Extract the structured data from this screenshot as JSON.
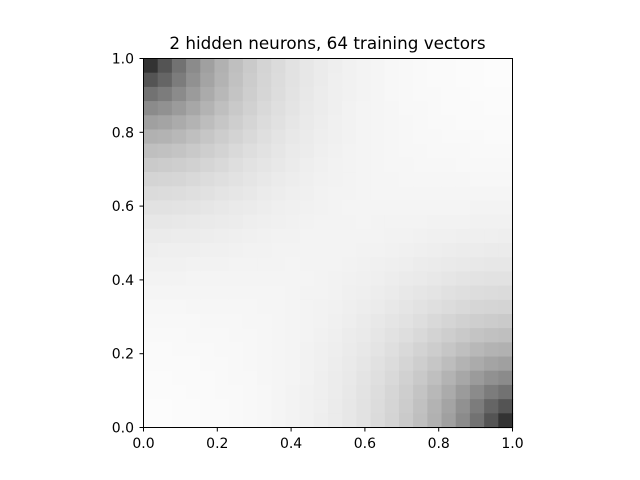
{
  "chart_data": {
    "type": "heatmap",
    "title": "2 hidden neurons, 64 training vectors",
    "xlabel": "",
    "ylabel": "",
    "xlim": [
      0.0,
      1.0
    ],
    "ylim": [
      0.0,
      1.0
    ],
    "x_tick_labels": [
      "0.0",
      "0.2",
      "0.4",
      "0.6",
      "0.8",
      "1.0"
    ],
    "y_tick_labels": [
      "0.0",
      "0.2",
      "0.4",
      "0.6",
      "0.8",
      "1.0"
    ],
    "x_ticks": [
      0.0,
      0.2,
      0.4,
      0.6,
      0.8,
      1.0
    ],
    "y_ticks": [
      0.0,
      0.2,
      0.4,
      0.6,
      0.8,
      1.0
    ],
    "grid_resolution": 26,
    "colormap": "gray_r",
    "value_range": [
      0.0,
      1.0
    ],
    "corner_values": {
      "top_left": 1.0,
      "bottom_right": 1.0,
      "top_right": 0.0,
      "bottom_left": 0.0
    },
    "grid": false,
    "colorbar": false,
    "colors": {
      "high": "#000000",
      "low": "#ffffff",
      "axis": "#000000"
    }
  }
}
